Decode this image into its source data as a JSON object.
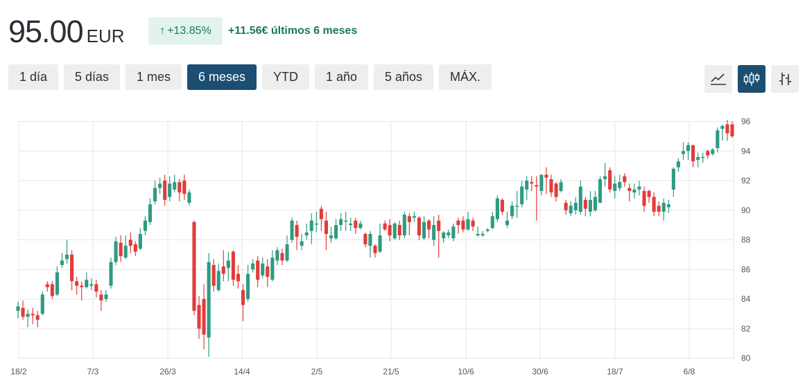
{
  "header": {
    "price": "95.00",
    "currency": "EUR",
    "change_percent": "+13.85%",
    "change_text": "+11.56€ últimos 6 meses",
    "up_arrow_icon": "arrow-up-icon"
  },
  "ranges": [
    {
      "label": "1 día",
      "active": false
    },
    {
      "label": "5 días",
      "active": false
    },
    {
      "label": "1 mes",
      "active": false
    },
    {
      "label": "6 meses",
      "active": true
    },
    {
      "label": "YTD",
      "active": false
    },
    {
      "label": "1 año",
      "active": false
    },
    {
      "label": "5 años",
      "active": false
    },
    {
      "label": "MÁX.",
      "active": false
    }
  ],
  "chart_types": [
    {
      "icon": "line-chart-icon",
      "active": false
    },
    {
      "icon": "candlestick-chart-icon",
      "active": true
    },
    {
      "icon": "ohlc-chart-icon",
      "active": false
    }
  ],
  "colors": {
    "up": "#2e9b83",
    "down": "#e23b3b",
    "accent": "#1c4e73",
    "positive_text": "#167a5a",
    "badge_bg": "#e2f3ec"
  },
  "chart_data": {
    "type": "candlestick",
    "y_ticks": [
      80,
      82,
      84,
      86,
      88,
      90,
      92,
      94,
      96
    ],
    "ylim": [
      80,
      96.4
    ],
    "x_ticks": [
      "18/2",
      "7/3",
      "26/3",
      "14/4",
      "2/5",
      "21/5",
      "10/6",
      "30/6",
      "18/7",
      "6/8"
    ],
    "grid": true,
    "candles": [
      [
        83.2,
        83.5,
        82.7,
        83.8
      ],
      [
        83.4,
        82.8,
        82.6,
        83.9
      ],
      [
        82.8,
        83.0,
        82.1,
        83.3
      ],
      [
        83.0,
        82.9,
        82.3,
        83.4
      ],
      [
        82.9,
        82.6,
        82.1,
        83.2
      ],
      [
        83.0,
        84.3,
        82.9,
        84.5
      ],
      [
        85.0,
        84.8,
        84.5,
        85.2
      ],
      [
        85.0,
        84.2,
        84.0,
        85.2
      ],
      [
        84.3,
        85.8,
        84.2,
        86.2
      ],
      [
        86.3,
        86.6,
        86.1,
        87.1
      ],
      [
        86.7,
        87.0,
        86.4,
        88.0
      ],
      [
        87.0,
        85.2,
        84.6,
        87.3
      ],
      [
        85.2,
        84.9,
        84.3,
        85.5
      ],
      [
        84.9,
        84.8,
        83.9,
        85.2
      ],
      [
        84.8,
        85.3,
        84.7,
        85.8
      ],
      [
        84.9,
        85.0,
        84.6,
        85.4
      ],
      [
        85.0,
        84.5,
        84.1,
        85.3
      ],
      [
        84.3,
        83.9,
        83.2,
        84.6
      ],
      [
        84.0,
        84.3,
        83.8,
        84.6
      ],
      [
        84.9,
        86.5,
        84.7,
        86.8
      ],
      [
        86.5,
        87.9,
        86.3,
        88.2
      ],
      [
        87.8,
        86.9,
        86.5,
        88.3
      ],
      [
        86.8,
        87.6,
        86.7,
        88.3
      ],
      [
        88.0,
        87.6,
        87.1,
        88.5
      ],
      [
        87.7,
        87.2,
        86.9,
        87.9
      ],
      [
        87.4,
        88.4,
        87.3,
        88.8
      ],
      [
        88.6,
        89.3,
        88.3,
        89.6
      ],
      [
        89.2,
        90.4,
        89.0,
        90.8
      ],
      [
        90.6,
        91.5,
        90.4,
        92.0
      ],
      [
        91.5,
        91.8,
        91.1,
        92.2
      ],
      [
        92.0,
        90.7,
        90.3,
        92.4
      ],
      [
        90.9,
        91.8,
        90.6,
        92.3
      ],
      [
        91.4,
        91.9,
        91.2,
        92.4
      ],
      [
        91.9,
        91.2,
        90.6,
        92.1
      ],
      [
        92.0,
        91.1,
        90.7,
        92.4
      ],
      [
        90.5,
        91.2,
        90.3,
        91.4
      ],
      [
        89.2,
        83.2,
        82.9,
        89.3
      ],
      [
        83.6,
        82.0,
        81.3,
        84.2
      ],
      [
        84.0,
        81.6,
        80.6,
        85.0
      ],
      [
        81.4,
        86.5,
        80.1,
        87.1
      ],
      [
        86.3,
        84.9,
        84.5,
        86.7
      ],
      [
        84.6,
        85.9,
        84.5,
        86.4
      ],
      [
        86.2,
        85.7,
        85.2,
        87.3
      ],
      [
        86.1,
        86.6,
        85.2,
        87.2
      ],
      [
        87.2,
        85.3,
        84.9,
        87.3
      ],
      [
        85.7,
        85.2,
        84.7,
        86.3
      ],
      [
        84.6,
        83.6,
        82.5,
        85.0
      ],
      [
        84.0,
        85.7,
        83.8,
        86.3
      ],
      [
        86.0,
        86.4,
        85.8,
        86.7
      ],
      [
        86.6,
        85.3,
        84.8,
        86.9
      ],
      [
        85.6,
        86.4,
        85.4,
        86.8
      ],
      [
        86.2,
        85.5,
        84.8,
        86.7
      ],
      [
        85.3,
        86.8,
        85.2,
        87.3
      ],
      [
        86.6,
        87.3,
        86.3,
        87.5
      ],
      [
        87.1,
        86.6,
        86.3,
        87.4
      ],
      [
        86.6,
        87.7,
        86.5,
        88.3
      ],
      [
        88.0,
        89.3,
        87.8,
        89.5
      ],
      [
        89.0,
        88.2,
        87.3,
        89.3
      ],
      [
        87.6,
        87.9,
        87.3,
        88.4
      ],
      [
        88.3,
        88.5,
        88.0,
        89.1
      ],
      [
        88.6,
        89.3,
        87.7,
        89.8
      ],
      [
        89.1,
        89.1,
        88.5,
        89.9
      ],
      [
        90.1,
        89.4,
        88.6,
        90.3
      ],
      [
        89.3,
        88.4,
        87.3,
        89.9
      ],
      [
        88.1,
        88.3,
        87.8,
        88.9
      ],
      [
        88.1,
        89.0,
        88.0,
        89.4
      ],
      [
        89.0,
        89.4,
        88.6,
        89.8
      ],
      [
        89.3,
        89.3,
        88.6,
        89.9
      ],
      [
        89.0,
        89.1,
        88.6,
        89.5
      ],
      [
        89.3,
        88.8,
        88.4,
        89.5
      ],
      [
        88.8,
        89.1,
        88.7,
        89.3
      ],
      [
        88.4,
        87.7,
        87.5,
        88.5
      ],
      [
        87.6,
        88.4,
        86.8,
        88.6
      ],
      [
        87.6,
        87.1,
        86.8,
        87.7
      ],
      [
        87.2,
        88.3,
        87.1,
        89.1
      ],
      [
        89.1,
        88.7,
        88.6,
        89.3
      ],
      [
        89.0,
        88.3,
        87.9,
        89.4
      ],
      [
        88.1,
        89.1,
        88.0,
        89.2
      ],
      [
        89.0,
        88.3,
        88.0,
        89.3
      ],
      [
        88.3,
        89.7,
        88.1,
        89.9
      ],
      [
        89.6,
        89.2,
        88.3,
        89.8
      ],
      [
        89.5,
        89.6,
        89.2,
        89.9
      ],
      [
        89.5,
        88.3,
        88.0,
        89.6
      ],
      [
        88.1,
        89.2,
        88.0,
        89.6
      ],
      [
        89.3,
        88.7,
        88.1,
        89.4
      ],
      [
        88.0,
        89.0,
        87.6,
        89.6
      ],
      [
        89.3,
        88.6,
        86.8,
        89.7
      ],
      [
        88.1,
        88.5,
        87.8,
        88.6
      ],
      [
        88.3,
        88.5,
        88.1,
        88.7
      ],
      [
        88.1,
        88.9,
        87.9,
        89.1
      ],
      [
        89.3,
        89.0,
        88.4,
        89.5
      ],
      [
        89.3,
        88.7,
        88.5,
        89.6
      ],
      [
        88.7,
        89.4,
        88.6,
        89.9
      ],
      [
        89.3,
        88.9,
        88.6,
        89.5
      ],
      [
        88.3,
        88.4,
        88.2,
        88.9
      ],
      [
        88.3,
        88.4,
        88.2,
        88.6
      ],
      [
        88.6,
        88.7,
        88.5,
        88.8
      ],
      [
        88.8,
        89.6,
        88.7,
        89.9
      ],
      [
        89.4,
        90.8,
        89.2,
        91.0
      ],
      [
        90.7,
        89.9,
        89.7,
        90.8
      ],
      [
        89.0,
        89.3,
        88.8,
        89.9
      ],
      [
        89.6,
        90.3,
        89.4,
        90.6
      ],
      [
        90.3,
        90.3,
        89.5,
        91.3
      ],
      [
        90.4,
        91.6,
        90.2,
        92.0
      ],
      [
        91.4,
        92.0,
        90.7,
        92.3
      ],
      [
        91.9,
        91.8,
        91.3,
        92.3
      ],
      [
        91.7,
        91.6,
        89.3,
        92.3
      ],
      [
        91.3,
        92.4,
        91.0,
        92.4
      ],
      [
        92.4,
        92.2,
        91.1,
        92.9
      ],
      [
        92.1,
        91.2,
        90.9,
        92.4
      ],
      [
        91.8,
        90.9,
        90.6,
        91.9
      ],
      [
        91.3,
        91.9,
        91.2,
        92.1
      ],
      [
        90.5,
        90.0,
        89.7,
        90.7
      ],
      [
        89.8,
        90.3,
        89.6,
        90.6
      ],
      [
        90.0,
        90.5,
        89.7,
        90.9
      ],
      [
        89.9,
        91.6,
        89.7,
        92.0
      ],
      [
        90.7,
        90.1,
        89.6,
        90.9
      ],
      [
        89.9,
        90.7,
        89.6,
        91.3
      ],
      [
        90.0,
        90.9,
        89.9,
        91.3
      ],
      [
        90.5,
        92.1,
        90.5,
        92.3
      ],
      [
        92.1,
        92.3,
        91.6,
        93.2
      ],
      [
        92.7,
        91.4,
        91.2,
        92.9
      ],
      [
        91.3,
        91.8,
        90.8,
        92.3
      ],
      [
        91.5,
        91.9,
        91.3,
        92.4
      ],
      [
        92.3,
        91.9,
        91.6,
        92.5
      ],
      [
        91.5,
        91.3,
        90.6,
        91.8
      ],
      [
        91.2,
        91.4,
        90.8,
        91.8
      ],
      [
        91.4,
        91.6,
        91.0,
        92.0
      ],
      [
        91.3,
        90.3,
        89.9,
        91.6
      ],
      [
        91.3,
        90.9,
        90.5,
        91.4
      ],
      [
        90.9,
        89.9,
        89.6,
        91.2
      ],
      [
        90.3,
        89.9,
        89.6,
        90.6
      ],
      [
        89.9,
        90.5,
        89.3,
        90.8
      ],
      [
        90.2,
        90.4,
        89.8,
        90.7
      ],
      [
        91.4,
        92.8,
        90.9,
        92.9
      ],
      [
        92.9,
        93.3,
        92.6,
        93.5
      ],
      [
        93.8,
        94.0,
        93.4,
        94.6
      ],
      [
        94.0,
        94.4,
        93.4,
        94.6
      ],
      [
        94.4,
        93.3,
        92.9,
        94.4
      ],
      [
        93.4,
        93.6,
        92.9,
        93.9
      ],
      [
        93.6,
        93.6,
        93.2,
        93.9
      ],
      [
        94.0,
        93.7,
        93.5,
        94.1
      ],
      [
        93.8,
        94.1,
        93.7,
        94.2
      ],
      [
        94.2,
        95.4,
        93.9,
        95.6
      ],
      [
        95.5,
        95.7,
        94.7,
        95.8
      ],
      [
        95.8,
        95.2,
        94.7,
        96.1
      ],
      [
        95.8,
        95.0,
        94.9,
        96.0
      ]
    ]
  }
}
